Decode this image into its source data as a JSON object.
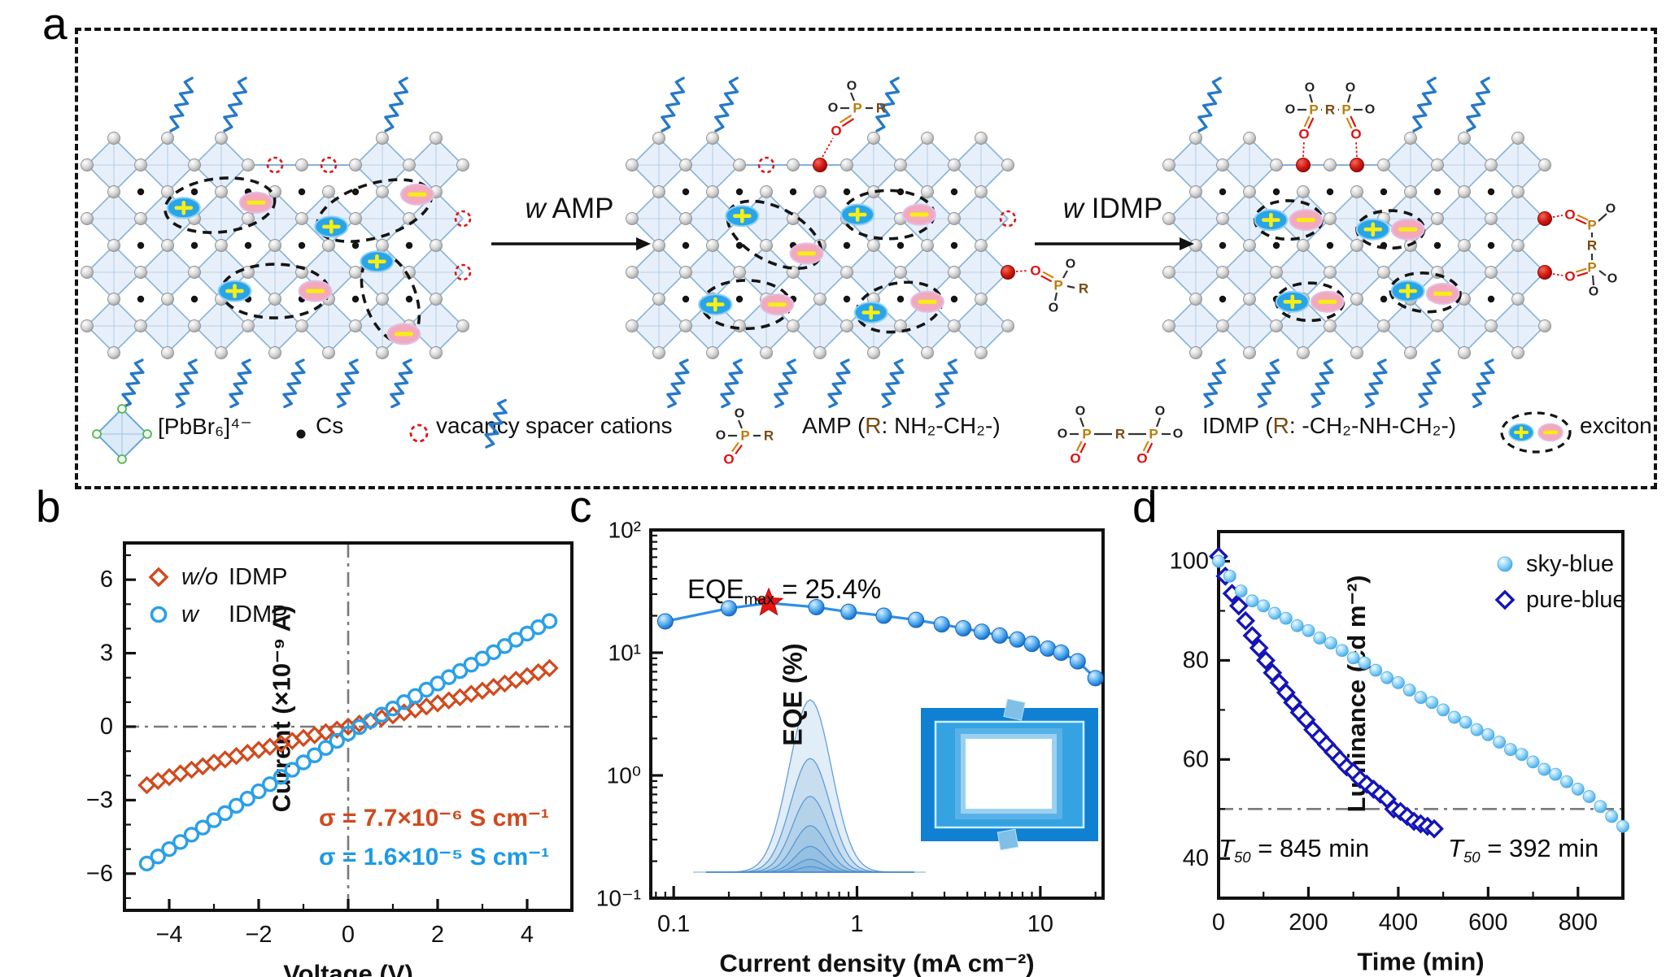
{
  "panel_a": {
    "label": "a",
    "arrows": [
      {
        "italic": "w",
        "rest": " AMP"
      },
      {
        "italic": "w",
        "rest": " IDMP"
      }
    ],
    "atoms": {
      "O": "O",
      "P": "P",
      "R": "R"
    },
    "legend": {
      "octahedron": "[PbBr₆]⁴⁻",
      "cs": "Cs",
      "vacancy": "vacancy",
      "spacer": "spacer cations",
      "amp_pre": "AMP (",
      "amp_r": "R",
      "amp_post": ": NH₂-CH₂-)",
      "idmp_pre": "IDMP (",
      "idmp_r": "R",
      "idmp_post": ": -CH₂-NH-CH₂-)",
      "exciton": "exciton"
    },
    "lattices": [
      {
        "name": "pristine",
        "removed_top": [
          6,
          8
        ],
        "flat": [
          5,
          9
        ],
        "vacancies": [
          [
            6,
            1
          ],
          [
            8,
            1
          ],
          [
            13,
            3
          ],
          [
            13,
            5
          ]
        ],
        "red_sites": [],
        "molecules": [],
        "springs_top": [
          2,
          4,
          10
        ],
        "springs_bottom": [
          1,
          3,
          5,
          7,
          9,
          11
        ],
        "excitons": [
          {
            "plus": [
              2.6,
              2.6
            ],
            "minus": [
              5.3,
              2.4
            ],
            "ring": [
              3.95,
              2.5,
              2.05,
              1.0,
              -6
            ]
          },
          {
            "plus": [
              8.1,
              3.3
            ],
            "minus": [
              11.3,
              2.1
            ],
            "ring": [
              9.7,
              2.7,
              2.2,
              1.0,
              -17
            ]
          },
          {
            "plus": [
              4.5,
              5.7
            ],
            "minus": [
              7.5,
              5.7
            ],
            "ring": [
              6.0,
              5.7,
              2.0,
              1.0,
              0
            ]
          },
          {
            "plus": [
              9.8,
              4.6
            ],
            "minus": [
              10.8,
              7.3
            ],
            "ring": [
              10.3,
              5.95,
              1.75,
              0.95,
              70
            ]
          }
        ]
      },
      {
        "name": "with-AMP",
        "removed_top": [
          4,
          6
        ],
        "flat": [
          3,
          7
        ],
        "vacancies": [
          [
            4,
            1
          ],
          [
            13,
            3
          ]
        ],
        "red_sites": [
          [
            6,
            1
          ],
          [
            13,
            5
          ]
        ],
        "molecules": [
          {
            "type": "amp-top",
            "site": [
              6,
              1
            ]
          },
          {
            "type": "amp-right",
            "site": [
              13,
              5
            ]
          }
        ],
        "springs_top": [
          0,
          2,
          8
        ],
        "springs_bottom": [
          1,
          3,
          5,
          7,
          9,
          11
        ],
        "excitons": [
          {
            "plus": [
              3.1,
              2.9
            ],
            "minus": [
              5.5,
              4.3
            ],
            "ring": [
              4.3,
              3.6,
              1.9,
              1.0,
              28
            ]
          },
          {
            "plus": [
              7.4,
              2.85
            ],
            "minus": [
              9.7,
              2.85
            ],
            "ring": [
              8.55,
              2.85,
              1.7,
              0.9,
              0
            ]
          },
          {
            "plus": [
              2.1,
              6.2
            ],
            "minus": [
              4.4,
              6.2
            ],
            "ring": [
              3.25,
              6.2,
              1.65,
              0.9,
              0
            ]
          },
          {
            "plus": [
              7.9,
              6.5
            ],
            "minus": [
              10.0,
              6.1
            ],
            "ring": [
              8.95,
              6.3,
              1.6,
              0.9,
              -10
            ]
          }
        ]
      },
      {
        "name": "with-IDMP",
        "removed_top": [
          4,
          6
        ],
        "flat": [
          3,
          7
        ],
        "vacancies": [],
        "red_sites": [
          [
            4,
            1
          ],
          [
            6,
            1
          ],
          [
            13,
            3
          ],
          [
            13,
            5
          ]
        ],
        "molecules": [
          {
            "type": "idmp-top",
            "site": [
              4,
              1
            ],
            "site2": [
              6,
              1
            ]
          },
          {
            "type": "idmp-right",
            "site": [
              13,
              3
            ],
            "site2": [
              13,
              5
            ]
          }
        ],
        "springs_top": [
          0,
          8,
          10
        ],
        "springs_bottom": [
          1,
          3,
          5,
          7,
          9,
          11
        ],
        "excitons": [
          {
            "plus": [
              2.8,
              3.05
            ],
            "minus": [
              4.1,
              3.05
            ],
            "ring": [
              3.45,
              3.05,
              1.25,
              0.72,
              0
            ]
          },
          {
            "plus": [
              6.6,
              3.4
            ],
            "minus": [
              7.9,
              3.4
            ],
            "ring": [
              7.25,
              3.4,
              1.25,
              0.7,
              0
            ]
          },
          {
            "plus": [
              3.6,
              6.1
            ],
            "minus": [
              4.9,
              6.1
            ],
            "ring": [
              4.25,
              6.1,
              1.25,
              0.7,
              0
            ]
          },
          {
            "plus": [
              7.9,
              5.7
            ],
            "minus": [
              9.2,
              5.8
            ],
            "ring": [
              8.55,
              5.75,
              1.3,
              0.72,
              4
            ]
          }
        ]
      }
    ]
  },
  "panel_b": {
    "label": "b",
    "legend": [
      {
        "italic": "w/o",
        "rest": "IDMP",
        "marker": "open-diamond",
        "color": "#d14a1e"
      },
      {
        "italic": "w",
        "rest": "IDMP",
        "marker": "open-circle",
        "color": "#2aa0e8"
      }
    ],
    "sigma_wo": "σ = 7.7×10⁻⁶ S cm⁻¹",
    "sigma_w": "σ = 1.6×10⁻⁵ S cm⁻¹"
  },
  "panel_c": {
    "label": "c",
    "annotation": {
      "pre": "EQE",
      "sub": "max",
      "post": " = 25.4%"
    }
  },
  "panel_d": {
    "label": "d",
    "t50_left": {
      "pre": "T",
      "sub": "50",
      "post": " = 845 min"
    },
    "t50_right": {
      "pre": "T",
      "sub": "50",
      "post": " = 392 min"
    }
  },
  "colors": {
    "red_series": "#d14a1e",
    "blue_series": "#2aa0e8",
    "curve_c": "#2e8fe6",
    "sky_blue": "#5fc0f4",
    "pure_blue": "#1414b8",
    "refline": "#7a7a7a",
    "lattice_fill": "#e7f0fa",
    "lattice_stroke": "#86b3da",
    "spring": "#2579c9",
    "vacancy": "#dd1515",
    "red_site": "#c01010",
    "plus_fill": "#28a4e9",
    "minus_fill": "#f3a9bc",
    "charge_yellow": "#f7ee12",
    "atom_P": "#b87d0a",
    "atom_R": "#7a4a12",
    "atom_O_red": "#e01010"
  },
  "chart_data": [
    {
      "panel": "b",
      "type": "scatter",
      "xlabel": "Voltage (V)",
      "ylabel": "Current (×10⁻⁹ A)",
      "xlim": [
        -5,
        5
      ],
      "ylim": [
        -7.5,
        7.5
      ],
      "xticks": [
        -4,
        -2,
        0,
        2,
        4
      ],
      "yticks": [
        -6,
        -3,
        0,
        3,
        6
      ],
      "crosshair": true,
      "x": [
        -4.5,
        -4.25,
        -4,
        -3.75,
        -3.5,
        -3.25,
        -3,
        -2.75,
        -2.5,
        -2.25,
        -2,
        -1.75,
        -1.5,
        -1.25,
        -1,
        -0.75,
        -0.5,
        -0.25,
        0,
        0.25,
        0.5,
        0.75,
        1,
        1.25,
        1.5,
        1.75,
        2,
        2.25,
        2.5,
        2.75,
        3,
        3.25,
        3.5,
        3.75,
        4,
        4.25,
        4.5
      ],
      "series": [
        {
          "name": "w/o IDMP",
          "marker": "open-diamond",
          "color": "#d14a1e",
          "values": [
            -2.39,
            -2.22,
            -2.06,
            -1.91,
            -1.76,
            -1.62,
            -1.47,
            -1.34,
            -1.2,
            -1.07,
            -0.95,
            -0.82,
            -0.7,
            -0.58,
            -0.46,
            -0.35,
            -0.23,
            -0.12,
            0,
            0.12,
            0.23,
            0.35,
            0.46,
            0.58,
            0.7,
            0.82,
            0.95,
            1.07,
            1.2,
            1.34,
            1.47,
            1.62,
            1.76,
            1.91,
            2.06,
            2.22,
            2.39
          ]
        },
        {
          "name": "w IDMP",
          "marker": "open-circle",
          "color": "#2aa0e8",
          "values": [
            -5.59,
            -5.3,
            -5,
            -4.71,
            -4.41,
            -4.12,
            -3.82,
            -3.53,
            -3.23,
            -2.94,
            -2.64,
            -2.35,
            -2.05,
            -1.76,
            -1.46,
            -1.17,
            -0.87,
            -0.58,
            -0.28,
            -0.02,
            0.23,
            0.49,
            0.74,
            1,
            1.25,
            1.51,
            1.76,
            2.02,
            2.27,
            2.53,
            2.78,
            3.04,
            3.29,
            3.55,
            3.8,
            4.06,
            4.31
          ]
        }
      ],
      "conductivity": [
        "7.7×10⁻⁶ S cm⁻¹",
        "1.6×10⁻⁵ S cm⁻¹"
      ]
    },
    {
      "panel": "c",
      "type": "line-scatter",
      "xscale": "log",
      "yscale": "log",
      "xlabel": "Current density (mA cm⁻²)",
      "ylabel": "EQE (%)",
      "xlim": [
        0.075,
        22
      ],
      "ylim": [
        0.1,
        100
      ],
      "xticks": [
        0.1,
        1,
        10
      ],
      "xtick_labels": [
        "0.1",
        "1",
        "10"
      ],
      "yticks": [
        0.1,
        1,
        10,
        100
      ],
      "ytick_labels": [
        "10⁻¹",
        "10⁰",
        "10¹",
        "10²"
      ],
      "eqe_max": 25.4,
      "star_point": [
        0.33,
        25.4
      ],
      "x": [
        0.09,
        0.2,
        0.33,
        0.6,
        0.9,
        1.4,
        2.1,
        2.9,
        3.8,
        4.8,
        6,
        7.5,
        9,
        11,
        13,
        16,
        20
      ],
      "y": [
        18,
        23,
        25.4,
        23.5,
        21.5,
        20,
        18.5,
        17,
        15.8,
        14.8,
        13.8,
        12.8,
        11.8,
        10.8,
        10,
        8.5,
        6.2
      ],
      "inset_peak_heights": [
        1,
        0.66,
        0.44,
        0.27,
        0.15,
        0.075,
        0.032
      ],
      "color": "#2e8fe6"
    },
    {
      "panel": "d",
      "type": "scatter",
      "xlabel": "Time (min)",
      "ylabel": "Luminance (cd m⁻²)",
      "xlim": [
        0,
        900
      ],
      "ylim": [
        32,
        106
      ],
      "xticks": [
        0,
        200,
        400,
        600,
        800
      ],
      "yticks": [
        40,
        60,
        80,
        100
      ],
      "refline_y": 50,
      "t50": {
        "sky_blue_min": 845,
        "pure_blue_min": 392
      },
      "series": [
        {
          "name": "sky-blue",
          "marker": "sphere",
          "color": "#5fc0f4",
          "t": [
            0,
            25,
            50,
            75,
            100,
            125,
            150,
            175,
            200,
            225,
            250,
            275,
            300,
            325,
            350,
            375,
            400,
            425,
            450,
            475,
            500,
            525,
            550,
            575,
            600,
            625,
            650,
            675,
            700,
            725,
            750,
            775,
            800,
            825,
            850,
            875,
            900
          ],
          "values": [
            100,
            97,
            94,
            92,
            91,
            89.5,
            88.5,
            87,
            86,
            84.5,
            83.5,
            82,
            80.5,
            79.5,
            78,
            76.5,
            75.5,
            74,
            72.5,
            71.5,
            70,
            68.5,
            67.5,
            66,
            65,
            63.5,
            62,
            61,
            59.5,
            58,
            57,
            55.5,
            54,
            52.5,
            50.5,
            48.5,
            46.5
          ]
        },
        {
          "name": "pure-blue",
          "marker": "open-diamond",
          "color": "#1414b8",
          "t": [
            0,
            15,
            30,
            45,
            60,
            75,
            90,
            105,
            120,
            135,
            150,
            165,
            180,
            195,
            210,
            225,
            240,
            255,
            270,
            285,
            300,
            315,
            330,
            345,
            360,
            375,
            390,
            405,
            420,
            435,
            450,
            465,
            480
          ],
          "values": [
            101,
            97,
            93.5,
            91,
            88,
            85,
            82.5,
            80,
            77.5,
            75.5,
            73.5,
            71.5,
            69.5,
            68,
            66,
            64.5,
            63,
            61.5,
            60,
            58.5,
            57.5,
            56,
            55,
            54,
            53,
            52,
            50,
            49.5,
            48.5,
            47.5,
            47,
            46.5,
            46
          ]
        }
      ]
    }
  ]
}
